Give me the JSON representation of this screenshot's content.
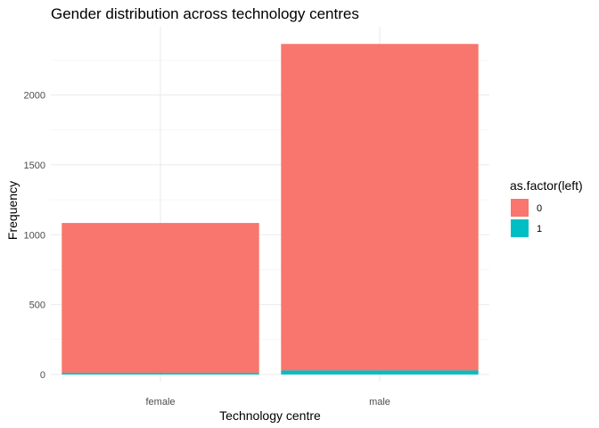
{
  "chart_data": {
    "type": "bar",
    "stacked": true,
    "title": "Gender distribution across technology centres",
    "xlabel": "Technology centre",
    "ylabel": "Frequency",
    "categories": [
      "female",
      "male"
    ],
    "series": [
      {
        "name": "0",
        "values": [
          1072,
          2336
        ],
        "color": "#F8766D"
      },
      {
        "name": "1",
        "values": [
          12,
          29
        ],
        "color": "#00BFC4"
      }
    ],
    "ylim": [
      0,
      2400
    ],
    "yticks": [
      0,
      500,
      1000,
      1500,
      2000
    ],
    "grid": true,
    "legend": {
      "title": "as.factor(left)",
      "position": "right"
    }
  }
}
